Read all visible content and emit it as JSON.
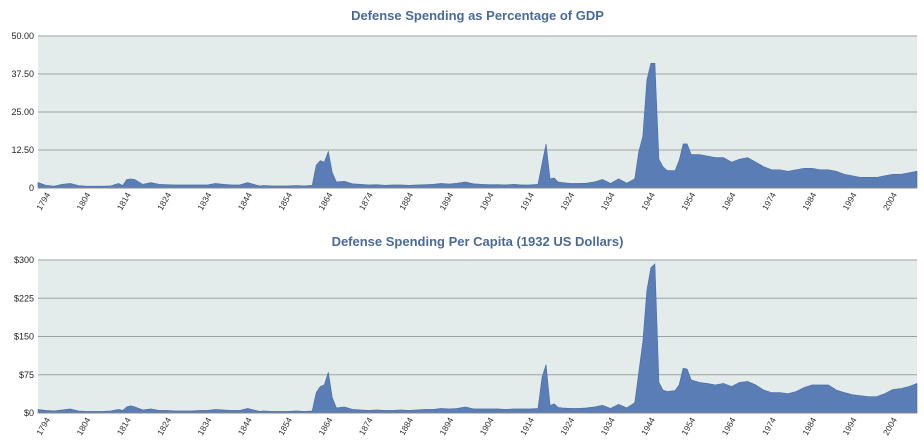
{
  "chart_data": [
    {
      "type": "area",
      "title": "Defense Spending as Percentage of GDP",
      "xlabel": "",
      "ylabel": "",
      "ylim": [
        0,
        50
      ],
      "yticks": [
        "0",
        "12.50",
        "25.00",
        "37.50",
        "50.00"
      ],
      "ytick_values": [
        0,
        12.5,
        25,
        37.5,
        50
      ],
      "xlim": [
        1792,
        2010
      ],
      "xticks": [
        "1794",
        "1804",
        "1814",
        "1824",
        "1834",
        "1844",
        "1854",
        "1864",
        "1874",
        "1884",
        "1894",
        "1904",
        "1914",
        "1924",
        "1934",
        "1944",
        "1954",
        "1964",
        "1974",
        "1984",
        "1994",
        "2004"
      ],
      "xtick_values": [
        1794,
        1804,
        1814,
        1824,
        1834,
        1844,
        1854,
        1864,
        1874,
        1884,
        1894,
        1904,
        1914,
        1924,
        1934,
        1944,
        1954,
        1964,
        1974,
        1984,
        1994,
        2004
      ],
      "grid": true,
      "color": "#5a7db5",
      "series": [
        {
          "x": [
            1792,
            1794,
            1796,
            1798,
            1800,
            1802,
            1804,
            1806,
            1808,
            1810,
            1812,
            1813,
            1814,
            1815,
            1816,
            1818,
            1820,
            1822,
            1824,
            1826,
            1828,
            1830,
            1832,
            1834,
            1836,
            1838,
            1840,
            1842,
            1844,
            1846,
            1847,
            1848,
            1850,
            1852,
            1854,
            1856,
            1858,
            1860,
            1861,
            1862,
            1863,
            1864,
            1865,
            1866,
            1868,
            1870,
            1872,
            1874,
            1876,
            1878,
            1880,
            1882,
            1884,
            1886,
            1888,
            1890,
            1892,
            1894,
            1896,
            1898,
            1900,
            1902,
            1904,
            1906,
            1908,
            1910,
            1912,
            1914,
            1916,
            1917,
            1918,
            1919,
            1920,
            1921,
            1922,
            1924,
            1926,
            1928,
            1930,
            1932,
            1934,
            1936,
            1938,
            1940,
            1941,
            1942,
            1943,
            1944,
            1945,
            1946,
            1947,
            1948,
            1950,
            1951,
            1952,
            1953,
            1954,
            1956,
            1958,
            1960,
            1962,
            1964,
            1966,
            1968,
            1970,
            1972,
            1974,
            1976,
            1978,
            1980,
            1982,
            1984,
            1986,
            1988,
            1990,
            1992,
            1994,
            1996,
            1998,
            2000,
            2002,
            2004,
            2006,
            2008,
            2010
          ],
          "y": [
            1.8,
            0.9,
            0.6,
            1.2,
            1.5,
            0.8,
            0.6,
            0.6,
            0.6,
            0.7,
            1.5,
            0.8,
            2.8,
            3.0,
            2.8,
            1.2,
            1.8,
            1.2,
            1.1,
            1.0,
            1.0,
            1.0,
            1.0,
            1.0,
            1.5,
            1.2,
            1.0,
            1.0,
            1.8,
            1.0,
            0.7,
            0.8,
            0.7,
            0.7,
            0.7,
            0.8,
            0.7,
            0.9,
            7.5,
            9.0,
            8.5,
            12.0,
            5.0,
            2.0,
            2.2,
            1.4,
            1.2,
            1.0,
            1.1,
            0.9,
            1.0,
            1.0,
            0.9,
            1.0,
            1.1,
            1.2,
            1.5,
            1.3,
            1.6,
            2.0,
            1.4,
            1.2,
            1.1,
            1.1,
            1.0,
            1.2,
            1.0,
            1.0,
            1.2,
            8.0,
            14.5,
            3.0,
            3.3,
            2.0,
            1.8,
            1.5,
            1.5,
            1.6,
            2.0,
            2.8,
            1.5,
            3.0,
            1.6,
            3.0,
            12.0,
            17.0,
            35.5,
            41.0,
            41.0,
            9.5,
            7.0,
            5.8,
            5.7,
            9.0,
            14.5,
            14.5,
            11.0,
            11.0,
            10.5,
            10.0,
            10.0,
            8.5,
            9.5,
            10.0,
            8.5,
            7.0,
            6.0,
            6.0,
            5.5,
            6.0,
            6.5,
            6.5,
            6.0,
            6.0,
            5.5,
            4.5,
            4.0,
            3.5,
            3.5,
            3.5,
            4.0,
            4.5,
            4.5,
            5.0,
            5.5
          ]
        }
      ]
    },
    {
      "type": "area",
      "title": "Defense Spending Per Capita (1932 US Dollars)",
      "xlabel": "",
      "ylabel": "",
      "ylim": [
        0,
        300
      ],
      "yticks": [
        "$0",
        "$75",
        "$150",
        "$225",
        "$300"
      ],
      "ytick_values": [
        0,
        75,
        150,
        225,
        300
      ],
      "xlim": [
        1792,
        2010
      ],
      "xticks": [
        "1794",
        "1804",
        "1814",
        "1824",
        "1834",
        "1844",
        "1854",
        "1864",
        "1874",
        "1884",
        "1894",
        "1904",
        "1914",
        "1924",
        "1934",
        "1944",
        "1954",
        "1964",
        "1974",
        "1984",
        "1994",
        "2004"
      ],
      "xtick_values": [
        1794,
        1804,
        1814,
        1824,
        1834,
        1844,
        1854,
        1864,
        1874,
        1884,
        1894,
        1904,
        1914,
        1924,
        1934,
        1944,
        1954,
        1964,
        1974,
        1984,
        1994,
        2004
      ],
      "grid": true,
      "color": "#5a7db5",
      "series": [
        {
          "x": [
            1792,
            1794,
            1796,
            1798,
            1800,
            1802,
            1804,
            1806,
            1808,
            1810,
            1812,
            1813,
            1814,
            1815,
            1816,
            1818,
            1820,
            1822,
            1824,
            1826,
            1828,
            1830,
            1832,
            1834,
            1836,
            1838,
            1840,
            1842,
            1844,
            1846,
            1847,
            1848,
            1850,
            1852,
            1854,
            1856,
            1858,
            1860,
            1861,
            1862,
            1863,
            1864,
            1865,
            1866,
            1868,
            1870,
            1872,
            1874,
            1876,
            1878,
            1880,
            1882,
            1884,
            1886,
            1888,
            1890,
            1892,
            1894,
            1896,
            1898,
            1900,
            1902,
            1904,
            1906,
            1908,
            1910,
            1912,
            1914,
            1916,
            1917,
            1918,
            1919,
            1920,
            1921,
            1922,
            1924,
            1926,
            1928,
            1930,
            1932,
            1934,
            1936,
            1938,
            1940,
            1941,
            1942,
            1943,
            1944,
            1945,
            1946,
            1947,
            1948,
            1950,
            1951,
            1952,
            1953,
            1954,
            1956,
            1958,
            1960,
            1962,
            1964,
            1966,
            1968,
            1970,
            1972,
            1974,
            1976,
            1978,
            1980,
            1982,
            1984,
            1986,
            1988,
            1990,
            1992,
            1994,
            1996,
            1998,
            2000,
            2002,
            2004,
            2006,
            2008,
            2010
          ],
          "y": [
            7,
            5,
            4,
            6,
            8,
            4,
            3,
            3,
            3,
            4,
            7,
            5,
            12,
            14,
            12,
            6,
            8,
            5,
            5,
            4,
            4,
            4,
            5,
            5,
            7,
            6,
            5,
            5,
            9,
            5,
            3,
            4,
            3,
            3,
            3,
            4,
            3,
            4,
            40,
            52,
            55,
            80,
            30,
            10,
            12,
            7,
            6,
            5,
            6,
            5,
            5,
            6,
            5,
            6,
            7,
            7,
            9,
            8,
            9,
            12,
            8,
            8,
            8,
            8,
            7,
            8,
            8,
            8,
            9,
            70,
            95,
            15,
            18,
            11,
            10,
            9,
            9,
            10,
            12,
            15,
            9,
            17,
            10,
            20,
            80,
            140,
            240,
            285,
            292,
            60,
            45,
            42,
            44,
            55,
            88,
            86,
            65,
            60,
            58,
            55,
            58,
            52,
            60,
            62,
            55,
            45,
            40,
            40,
            38,
            42,
            50,
            55,
            55,
            55,
            45,
            40,
            36,
            34,
            32,
            32,
            38,
            46,
            48,
            52,
            58
          ]
        }
      ]
    }
  ]
}
